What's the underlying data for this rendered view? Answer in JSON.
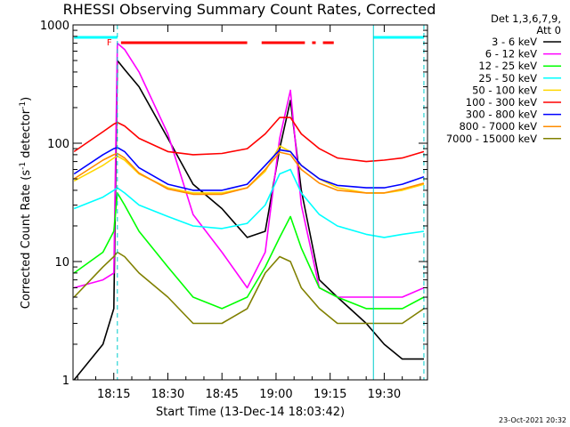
{
  "chart_data": {
    "type": "line",
    "title": "RHESSI Observing Summary Count Rates, Corrected",
    "xlabel": "Start Time (13-Dec-14 18:03:42)",
    "ylabel": "Corrected Count Rate (s⁻¹ detector⁻¹)",
    "ylabel_parts": [
      "Corrected Count Rate (s",
      "-1",
      " detector",
      "-1",
      ")"
    ],
    "yscale": "log",
    "ylim": [
      1,
      1000
    ],
    "xlim": [
      "18:03:42",
      "19:42:00"
    ],
    "x_ticks": [
      "18:15",
      "18:30",
      "18:45",
      "19:00",
      "19:15",
      "19:30"
    ],
    "y_ticks": [
      "1",
      "10",
      "100",
      "1000"
    ],
    "grid": false,
    "legend_position": "right",
    "legend_header": [
      "Det 1,3,6,7,9,",
      "Att 0"
    ],
    "flag_label": "F",
    "timestamp": "23-Oct-2021 20:32",
    "x": [
      "18:04",
      "18:12",
      "18:15",
      "18:16",
      "18:18",
      "18:22",
      "18:30",
      "18:37",
      "18:45",
      "18:52",
      "18:57",
      "19:01",
      "19:04",
      "19:07",
      "19:12",
      "19:17",
      "19:25",
      "19:30",
      "19:35",
      "19:41"
    ],
    "series": [
      {
        "name": "3 - 6 keV",
        "color": "#000000",
        "values": [
          1,
          2,
          4,
          500,
          420,
          300,
          110,
          45,
          28,
          16,
          18,
          90,
          230,
          40,
          7,
          5,
          3,
          2,
          1.5,
          1.5
        ]
      },
      {
        "name": "6 - 12 keV",
        "color": "#ff00ff",
        "values": [
          6,
          7,
          8,
          700,
          620,
          400,
          120,
          25,
          12,
          6,
          12,
          110,
          280,
          30,
          6,
          5,
          5,
          5,
          5,
          6
        ]
      },
      {
        "name": "12 - 25 keV",
        "color": "#00ff00",
        "values": [
          8,
          12,
          18,
          38,
          30,
          18,
          9,
          5,
          4,
          5,
          9,
          16,
          24,
          13,
          6,
          5,
          4,
          4,
          4,
          5
        ]
      },
      {
        "name": "25 - 50 keV",
        "color": "#00ffff",
        "values": [
          28,
          35,
          40,
          42,
          38,
          30,
          24,
          20,
          19,
          21,
          30,
          55,
          60,
          38,
          25,
          20,
          17,
          16,
          17,
          18
        ]
      },
      {
        "name": "50 - 100 keV",
        "color": "#ffd700",
        "values": [
          48,
          65,
          75,
          78,
          72,
          55,
          42,
          38,
          38,
          42,
          58,
          95,
          85,
          65,
          50,
          42,
          38,
          38,
          40,
          45
        ]
      },
      {
        "name": "100 - 300 keV",
        "color": "#ff0000",
        "values": [
          85,
          125,
          145,
          150,
          140,
          110,
          85,
          80,
          82,
          90,
          120,
          165,
          165,
          120,
          90,
          75,
          70,
          72,
          75,
          85
        ]
      },
      {
        "name": "300 - 800 keV",
        "color": "#0000ff",
        "values": [
          55,
          80,
          90,
          92,
          85,
          62,
          45,
          40,
          40,
          45,
          65,
          88,
          85,
          65,
          50,
          44,
          42,
          42,
          45,
          52
        ]
      },
      {
        "name": "800 - 7000 keV",
        "color": "#ff8c00",
        "values": [
          50,
          72,
          80,
          82,
          75,
          56,
          41,
          37,
          37,
          42,
          60,
          84,
          80,
          60,
          46,
          40,
          38,
          38,
          41,
          46
        ]
      },
      {
        "name": "7000 - 15000 keV",
        "color": "#808000",
        "values": [
          5,
          9,
          11,
          12,
          11,
          8,
          5,
          3,
          3,
          4,
          8,
          11,
          10,
          6,
          4,
          3,
          3,
          3,
          3,
          4
        ]
      }
    ],
    "attenuator_bars": [
      {
        "start": "18:04",
        "end": "18:16",
        "color": "#00ffff"
      },
      {
        "start": "19:27",
        "end": "19:41",
        "color": "#00ffff"
      }
    ],
    "flare_flag_bars": [
      {
        "start": "18:17",
        "end": "18:52",
        "color": "#ff0000"
      },
      {
        "start": "18:56",
        "end": "19:08",
        "color": "#ff0000"
      },
      {
        "start": "19:10",
        "end": "19:11",
        "color": "#ff0000"
      },
      {
        "start": "19:13",
        "end": "19:16",
        "color": "#ff0000"
      }
    ],
    "vertical_markers": [
      {
        "time": "18:16",
        "style": "dashed",
        "color": "#00cccc"
      },
      {
        "time": "19:27",
        "style": "solid",
        "color": "#00cccc"
      },
      {
        "time": "19:41",
        "style": "dashed",
        "color": "#00cccc"
      }
    ]
  }
}
